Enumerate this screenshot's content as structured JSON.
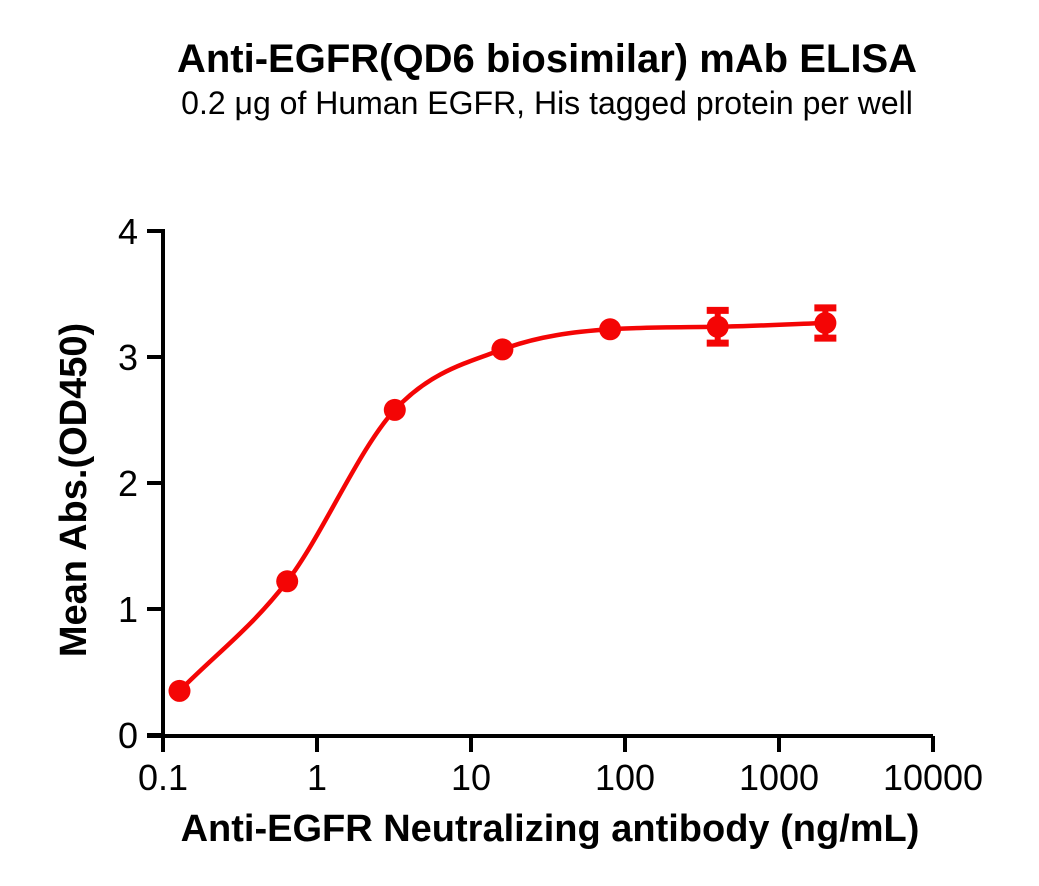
{
  "chart_data": {
    "type": "scatter",
    "fit_curve": true,
    "title": "Anti-EGFR(QD6 biosimilar) mAb ELISA",
    "subtitle": "0.2 μg of Human EGFR, His tagged protein per well",
    "xlabel": "Anti-EGFR Neutralizing antibody (ng/mL)",
    "ylabel": "Mean Abs.(OD450)",
    "x_scale": "log",
    "xlim": [
      0.1,
      10000
    ],
    "ylim": [
      0,
      4
    ],
    "grid": false,
    "legend": "none",
    "x_ticks": [
      "0.1",
      "1",
      "10",
      "100",
      "1000",
      "10000"
    ],
    "y_ticks": [
      "0",
      "1",
      "2",
      "3",
      "4"
    ],
    "series": [
      {
        "color": "#F40505",
        "marker": "circle",
        "x": [
          0.128,
          0.64,
          3.2,
          16,
          80,
          400,
          2000
        ],
        "y": [
          0.35,
          1.22,
          2.58,
          3.06,
          3.22,
          3.24,
          3.27
        ],
        "y_err": [
          null,
          null,
          null,
          null,
          null,
          0.13,
          0.12
        ]
      }
    ],
    "colors": {
      "background": "#FFFFFF",
      "axis": "#000000",
      "accent": "#F40505"
    }
  }
}
